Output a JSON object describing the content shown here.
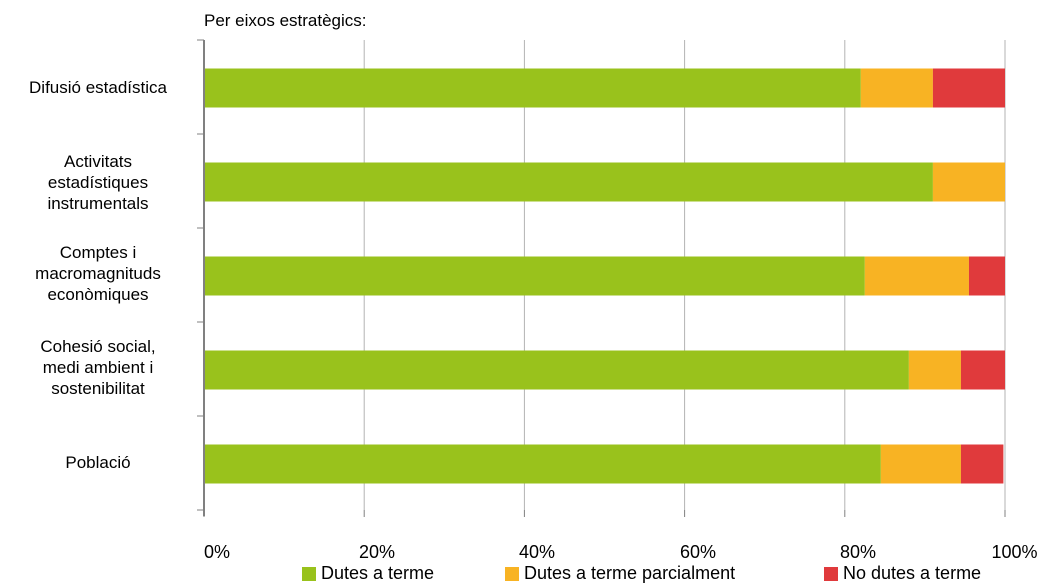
{
  "chart_data": {
    "type": "bar",
    "orientation": "horizontal",
    "stacked": true,
    "title": "Per eixos estratègics:",
    "categories": [
      "Difusió estadística",
      "Activitats\nestadístiques\ninstrumentals",
      "Comptes i\nmacromagnituds\neconòmiques",
      "Cohesió social,\nmedi ambient i\nsostenibilitat",
      "Població"
    ],
    "series": [
      {
        "name": "Dutes a terme",
        "color": "#99c21c",
        "values": [
          82,
          91,
          82.5,
          88,
          84.5
        ]
      },
      {
        "name": "Dutes a terme parcialment",
        "color": "#f8b323",
        "values": [
          9,
          9,
          13,
          6.5,
          10
        ]
      },
      {
        "name": "No dutes a terme",
        "color": "#e03a3c",
        "values": [
          9,
          0,
          4.5,
          5.5,
          5.3
        ]
      }
    ],
    "xlim": [
      0,
      100
    ],
    "x_ticks": [
      "0%",
      "20%",
      "40%",
      "60%",
      "80%",
      "100%"
    ],
    "grid": true,
    "legend_position": "bottom"
  }
}
